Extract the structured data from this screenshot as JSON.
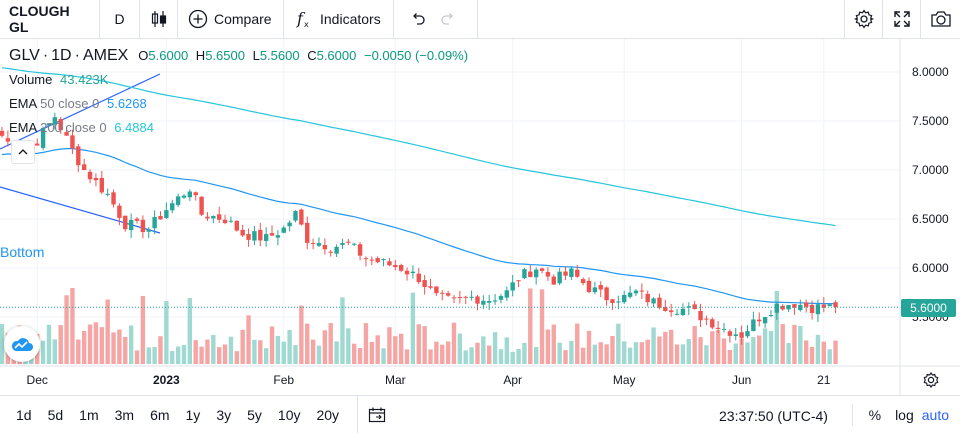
{
  "toolbar": {
    "symbol": "CLOUGH GL",
    "interval": "D",
    "compare_label": "Compare",
    "indicators_label": "Indicators"
  },
  "legend": {
    "symbol": "GLV",
    "interval": "1D",
    "exchange": "AMEX",
    "open_label": "O",
    "open": "5.6000",
    "high_label": "H",
    "high": "5.6500",
    "low_label": "L",
    "low": "5.5600",
    "close_label": "C",
    "close": "5.6000",
    "change": "−0.0050 (−0.09%)",
    "volume_label": "Volume",
    "volume_value": "43.423K",
    "ema50_label": "EMA",
    "ema50_params": "50 close 0",
    "ema50_value": "5.6268",
    "ema200_label": "EMA",
    "ema200_params": "200 close 0",
    "ema200_value": "6.4884"
  },
  "annotation_bottom": "Bottom",
  "last_price_tag": "5.6000",
  "bottom_bar": {
    "ranges": [
      "1d",
      "5d",
      "1m",
      "3m",
      "6m",
      "1y",
      "3y",
      "5y",
      "10y",
      "20y"
    ],
    "clock": "23:37:50 (UTC-4)",
    "percent_label": "%",
    "log_label": "log",
    "auto_label": "auto"
  },
  "colors": {
    "up": "#26a69a",
    "down": "#ef5350",
    "ema50": "#2196f3",
    "ema200": "#26c6da",
    "trendline": "#2962ff",
    "price_line": "#26a69a"
  },
  "chart_data": {
    "type": "candlestick",
    "title": "",
    "ylim": [
      5.0,
      8.2
    ],
    "y_ticks": [
      "8.0000",
      "7.5000",
      "7.0000",
      "6.5000",
      "6.0000",
      "5.5000"
    ],
    "y_tick_values": [
      8.0,
      7.5,
      7.0,
      6.5,
      6.0,
      5.5
    ],
    "x_tick_labels": [
      "Dec",
      "2023",
      "Feb",
      "Mar",
      "Apr",
      "May",
      "Jun",
      "21"
    ],
    "x_tick_index": [
      6,
      28,
      48,
      67,
      87,
      106,
      126,
      140
    ],
    "bar_count": 143,
    "close_anchors": [
      [
        0,
        7.35
      ],
      [
        3,
        7.15
      ],
      [
        6,
        7.3
      ],
      [
        9,
        7.55
      ],
      [
        12,
        7.2
      ],
      [
        14,
        7.0
      ],
      [
        18,
        6.75
      ],
      [
        21,
        6.45
      ],
      [
        25,
        6.4
      ],
      [
        28,
        6.6
      ],
      [
        32,
        6.82
      ],
      [
        34,
        6.55
      ],
      [
        38,
        6.5
      ],
      [
        41,
        6.35
      ],
      [
        45,
        6.3
      ],
      [
        48,
        6.4
      ],
      [
        50,
        6.55
      ],
      [
        52,
        6.3
      ],
      [
        56,
        6.22
      ],
      [
        59,
        6.24
      ],
      [
        62,
        6.1
      ],
      [
        65,
        6.05
      ],
      [
        68,
        6.0
      ],
      [
        71,
        5.9
      ],
      [
        74,
        5.7
      ],
      [
        77,
        5.65
      ],
      [
        80,
        5.7
      ],
      [
        83,
        5.68
      ],
      [
        86,
        5.75
      ],
      [
        88,
        5.9
      ],
      [
        91,
        6.0
      ],
      [
        94,
        5.88
      ],
      [
        97,
        5.95
      ],
      [
        100,
        5.8
      ],
      [
        103,
        5.7
      ],
      [
        106,
        5.7
      ],
      [
        108,
        5.75
      ],
      [
        111,
        5.65
      ],
      [
        114,
        5.6
      ],
      [
        117,
        5.57
      ],
      [
        120,
        5.48
      ],
      [
        123,
        5.38
      ],
      [
        126,
        5.32
      ],
      [
        129,
        5.5
      ],
      [
        132,
        5.62
      ],
      [
        135,
        5.64
      ],
      [
        138,
        5.6
      ]
    ],
    "ema50_last": 5.6268,
    "ema200_last": 6.4884,
    "last_close": 5.6,
    "volume_last": 43423
  }
}
